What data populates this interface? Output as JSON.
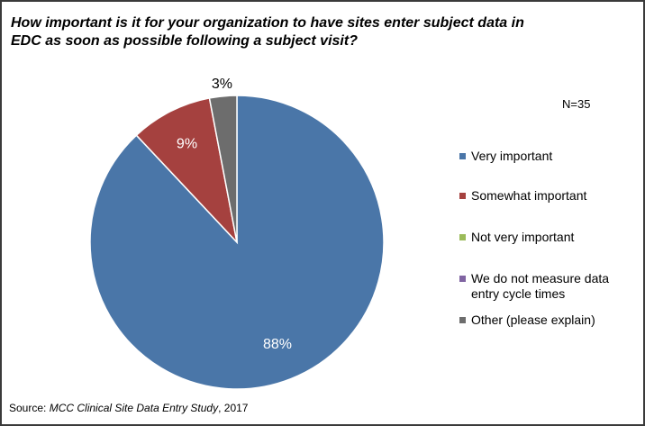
{
  "chart_data": {
    "type": "pie",
    "title": "How important is it for your organization to have sites enter subject data in EDC as soon as possible following a subject visit?",
    "annotation": "N=35",
    "categories": [
      "Very important",
      "Somewhat important",
      "Not very important",
      "We do not measure data entry cycle times",
      "Other (please explain)"
    ],
    "values": [
      88,
      9,
      0,
      0,
      3
    ],
    "value_labels": [
      "88%",
      "9%",
      null,
      null,
      "3%"
    ],
    "colors": [
      "#4a76a8",
      "#a5413f",
      "#9bbb59",
      "#8064a2",
      "#6d6d6d"
    ],
    "legend": "right",
    "source_prefix": "Source:",
    "source_name": "MCC Clinical Site Data Entry Study",
    "source_suffix": ", 2017"
  }
}
